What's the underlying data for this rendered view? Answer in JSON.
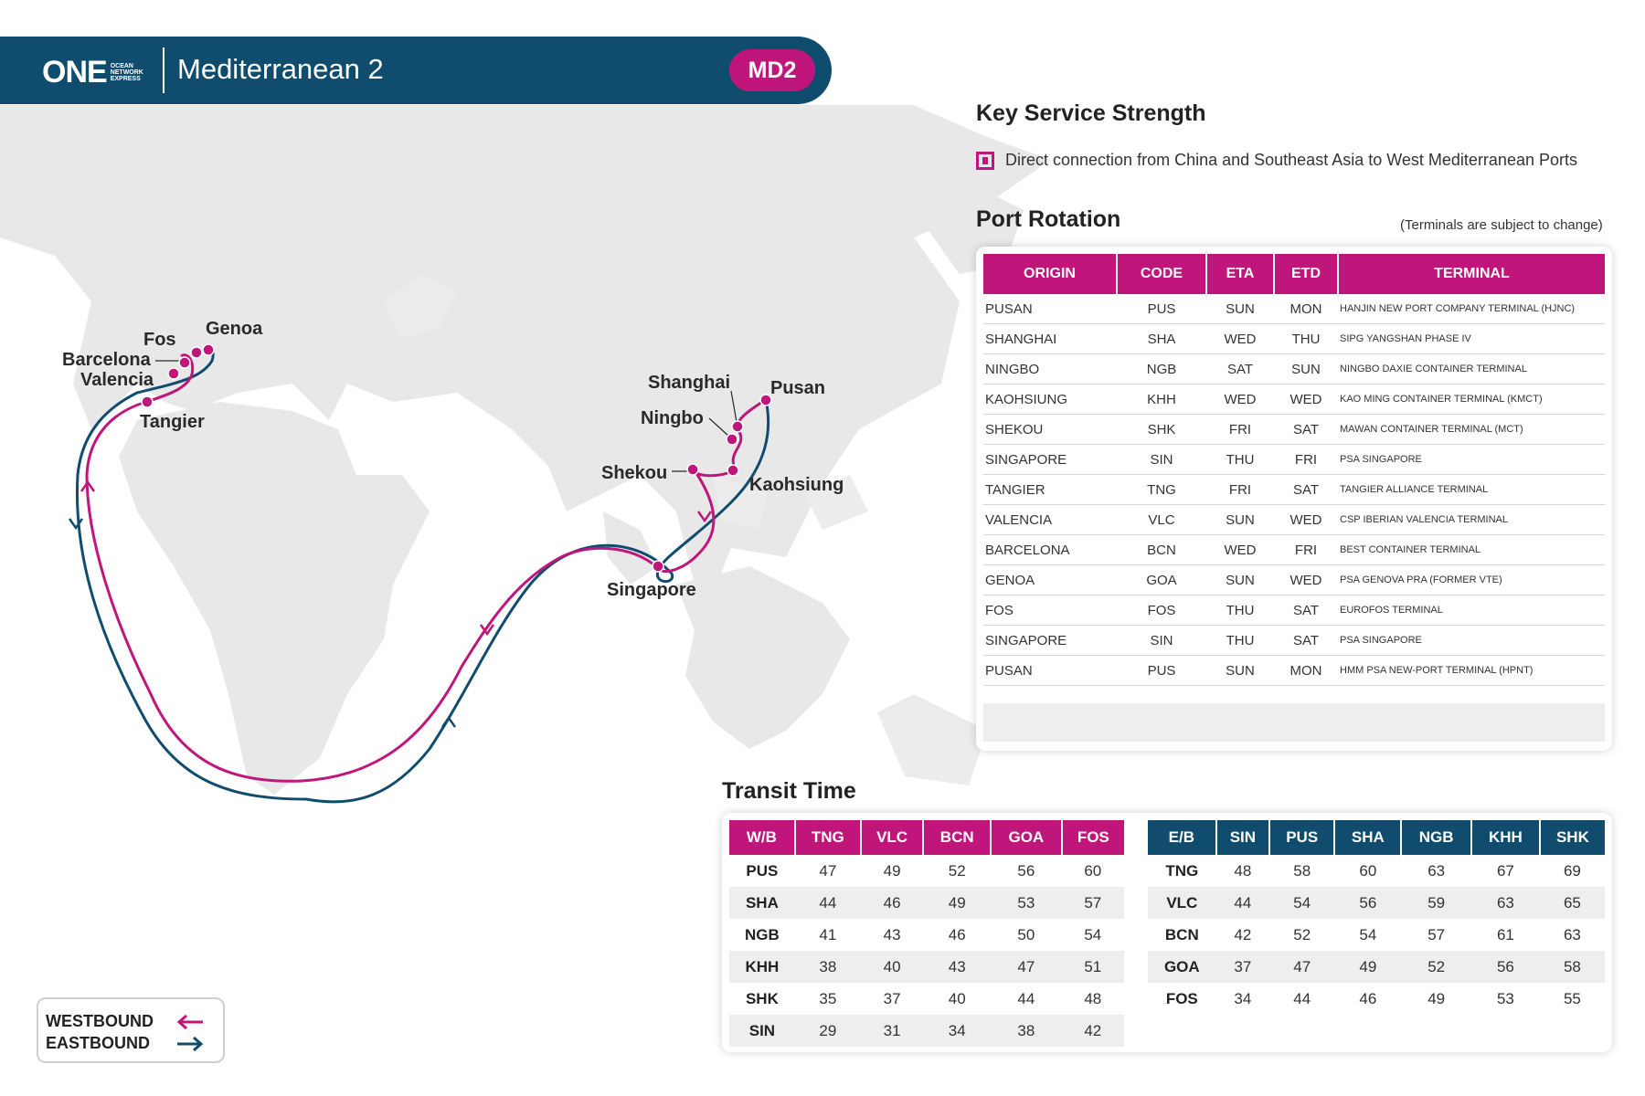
{
  "header": {
    "logo_main": "ONE",
    "logo_sub": "OCEAN NETWORK EXPRESS",
    "service_name": "Mediterranean 2",
    "service_code": "MD2"
  },
  "colors": {
    "primary_navy": "#0f4c6e",
    "accent_magenta": "#c0157a"
  },
  "key_service": {
    "title": "Key Service Strength",
    "items": [
      "Direct connection from China and Southeast Asia to West Mediterranean Ports"
    ]
  },
  "map": {
    "ports": {
      "genoa": "Genoa",
      "fos": "Fos",
      "barcelona": "Barcelona",
      "valencia": "Valencia",
      "tangier": "Tangier",
      "shanghai": "Shanghai",
      "pusan": "Pusan",
      "ningbo": "Ningbo",
      "shekou": "Shekou",
      "kaohsiung": "Kaohsiung",
      "singapore": "Singapore"
    }
  },
  "port_rotation": {
    "title": "Port Rotation",
    "note": "(Terminals are subject to change)",
    "headers": [
      "ORIGIN",
      "CODE",
      "ETA",
      "ETD",
      "TERMINAL"
    ],
    "rows": [
      [
        "PUSAN",
        "PUS",
        "SUN",
        "MON",
        "HANJIN NEW PORT COMPANY TERMINAL (HJNC)"
      ],
      [
        "SHANGHAI",
        "SHA",
        "WED",
        "THU",
        "SIPG YANGSHAN PHASE IV"
      ],
      [
        "NINGBO",
        "NGB",
        "SAT",
        "SUN",
        "NINGBO DAXIE CONTAINER TERMINAL"
      ],
      [
        "KAOHSIUNG",
        "KHH",
        "WED",
        "WED",
        "KAO MING CONTAINER TERMINAL (KMCT)"
      ],
      [
        "SHEKOU",
        "SHK",
        "FRI",
        "SAT",
        "MAWAN CONTAINER TERMINAL (MCT)"
      ],
      [
        "SINGAPORE",
        "SIN",
        "THU",
        "FRI",
        "PSA SINGAPORE"
      ],
      [
        "TANGIER",
        "TNG",
        "FRI",
        "SAT",
        "TANGIER ALLIANCE TERMINAL"
      ],
      [
        "VALENCIA",
        "VLC",
        "SUN",
        "WED",
        "CSP IBERIAN VALENCIA TERMINAL"
      ],
      [
        "BARCELONA",
        "BCN",
        "WED",
        "FRI",
        "BEST CONTAINER TERMINAL"
      ],
      [
        "GENOA",
        "GOA",
        "SUN",
        "WED",
        "PSA GENOVA PRA (FORMER VTE)"
      ],
      [
        "FOS",
        "FOS",
        "THU",
        "SAT",
        "EUROFOS TERMINAL"
      ],
      [
        "SINGAPORE",
        "SIN",
        "THU",
        "SAT",
        "PSA SINGAPORE"
      ],
      [
        "PUSAN",
        "PUS",
        "SUN",
        "MON",
        "HMM PSA NEW-PORT TERMINAL (HPNT)"
      ]
    ]
  },
  "transit_time": {
    "title": "Transit Time",
    "westbound": {
      "headers": [
        "W/B",
        "TNG",
        "VLC",
        "BCN",
        "GOA",
        "FOS"
      ],
      "rows": [
        [
          "PUS",
          "47",
          "49",
          "52",
          "56",
          "60"
        ],
        [
          "SHA",
          "44",
          "46",
          "49",
          "53",
          "57"
        ],
        [
          "NGB",
          "41",
          "43",
          "46",
          "50",
          "54"
        ],
        [
          "KHH",
          "38",
          "40",
          "43",
          "47",
          "51"
        ],
        [
          "SHK",
          "35",
          "37",
          "40",
          "44",
          "48"
        ],
        [
          "SIN",
          "29",
          "31",
          "34",
          "38",
          "42"
        ]
      ]
    },
    "eastbound": {
      "headers": [
        "E/B",
        "SIN",
        "PUS",
        "SHA",
        "NGB",
        "KHH",
        "SHK"
      ],
      "rows": [
        [
          "TNG",
          "48",
          "58",
          "60",
          "63",
          "67",
          "69"
        ],
        [
          "VLC",
          "44",
          "54",
          "56",
          "59",
          "63",
          "65"
        ],
        [
          "BCN",
          "42",
          "52",
          "54",
          "57",
          "61",
          "63"
        ],
        [
          "GOA",
          "37",
          "47",
          "49",
          "52",
          "56",
          "58"
        ],
        [
          "FOS",
          "34",
          "44",
          "46",
          "49",
          "53",
          "55"
        ]
      ]
    }
  },
  "legend": {
    "westbound": "WESTBOUND",
    "eastbound": "EASTBOUND"
  }
}
